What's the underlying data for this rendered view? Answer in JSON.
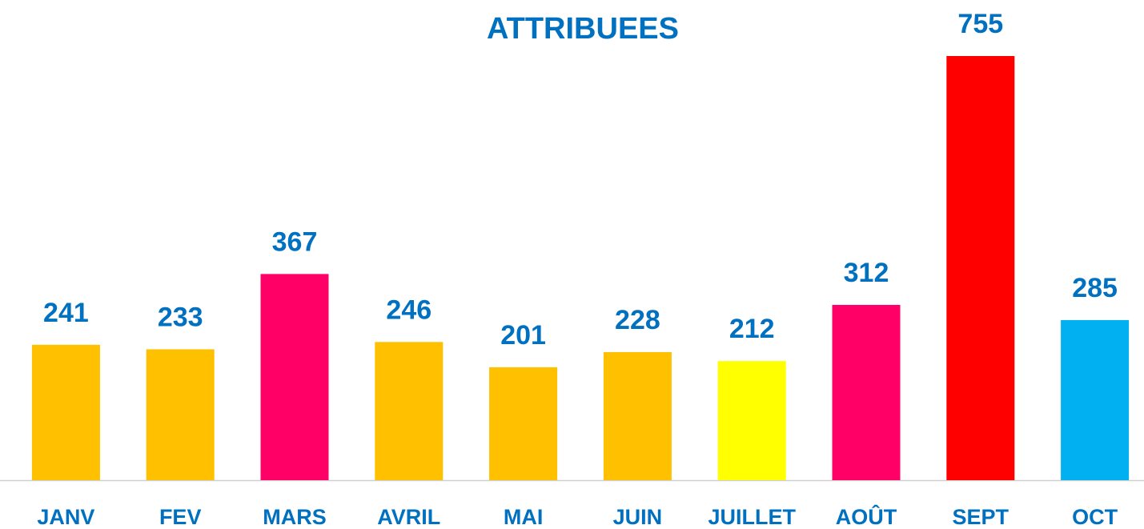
{
  "chart_data": {
    "type": "bar",
    "title": "ATTRIBUEES",
    "categories": [
      "JANV",
      "FEV",
      "MARS",
      "AVRIL",
      "MAI",
      "JUIN",
      "JUILLET",
      "AOÛT",
      "SEPT",
      "OCT"
    ],
    "values": [
      241,
      233,
      367,
      246,
      201,
      228,
      212,
      312,
      755,
      285
    ],
    "colors": [
      "#FFC000",
      "#FFC000",
      "#FF0066",
      "#FFC000",
      "#FFC000",
      "#FFC000",
      "#FFFF00",
      "#FF0066",
      "#FF0000",
      "#00B0F0"
    ]
  }
}
